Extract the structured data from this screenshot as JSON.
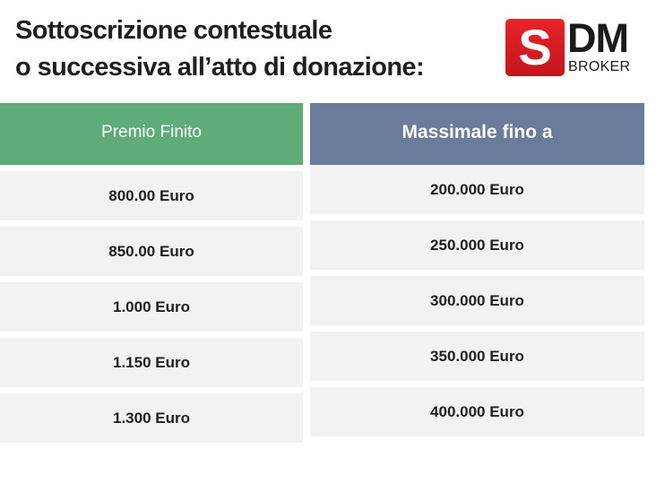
{
  "title": {
    "line1": "Sottoscrizione contestuale",
    "line2": "o successiva all’atto di donazione:"
  },
  "logo": {
    "mark": "S",
    "letters": "DM",
    "subtitle": "BROKER"
  },
  "table": {
    "headers": [
      "Premio Finito",
      "Massimale fino a"
    ],
    "header_colors": [
      "#5ead78",
      "#6a7b9b"
    ],
    "premio": [
      "800.00 Euro",
      "850.00 Euro",
      "1.000 Euro",
      "1.150 Euro",
      "1.300 Euro"
    ],
    "massimale": [
      "200.000 Euro",
      "250.000 Euro",
      "300.000 Euro",
      "350.000 Euro",
      "400.000 Euro"
    ]
  }
}
